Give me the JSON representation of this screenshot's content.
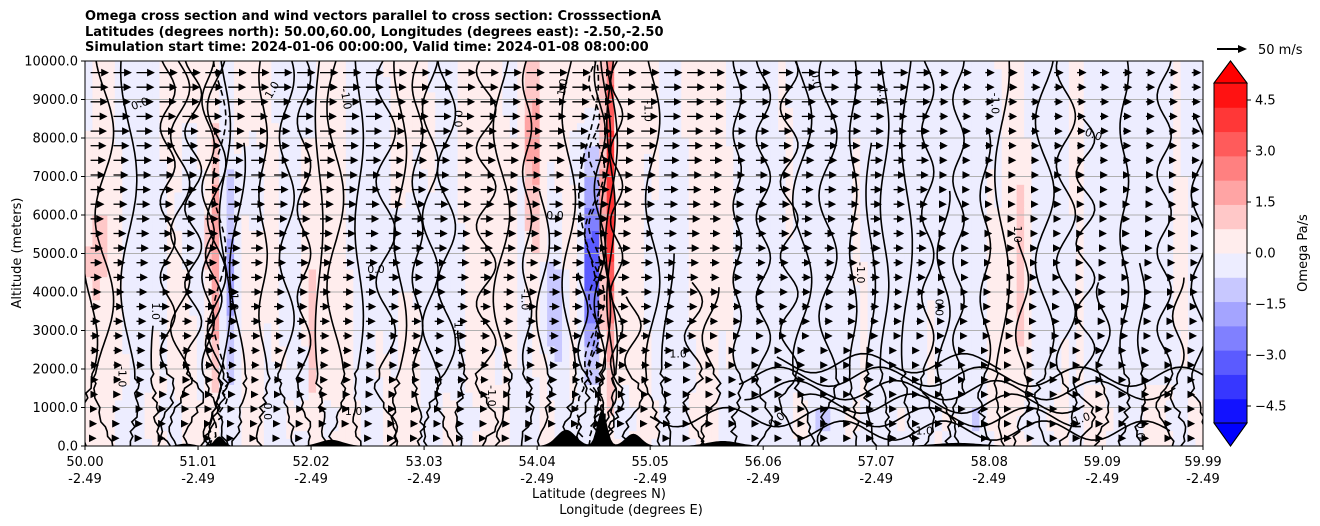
{
  "chart_data": {
    "type": "heatmap",
    "title_lines": [
      "Omega cross section and wind vectors parallel to cross section: CrosssectionA",
      "Latitudes (degrees north): 50.00,60.00, Longitudes (degrees east): -2.50,-2.50",
      "Simulation start time: 2024-01-06 00:00:00, Valid time: 2024-01-08 08:00:00"
    ],
    "ylabel": "Altitude (meters)",
    "xlabel_lines": [
      "Latitude (degrees N)",
      "Longitude (degrees E)"
    ],
    "xlim": [
      50.0,
      59.99
    ],
    "ylim": [
      0,
      10000
    ],
    "y_ticks": [
      "0.0",
      "1000.0",
      "2000.0",
      "3000.0",
      "4000.0",
      "5000.0",
      "6000.0",
      "7000.0",
      "8000.0",
      "9000.0",
      "10000.0"
    ],
    "x_ticks": [
      {
        "lat": "50.00",
        "lon": "-2.49"
      },
      {
        "lat": "51.01",
        "lon": "-2.49"
      },
      {
        "lat": "52.02",
        "lon": "-2.49"
      },
      {
        "lat": "53.03",
        "lon": "-2.49"
      },
      {
        "lat": "54.04",
        "lon": "-2.49"
      },
      {
        "lat": "55.05",
        "lon": "-2.49"
      },
      {
        "lat": "56.06",
        "lon": "-2.49"
      },
      {
        "lat": "57.07",
        "lon": "-2.49"
      },
      {
        "lat": "58.08",
        "lon": "-2.49"
      },
      {
        "lat": "59.09",
        "lon": "-2.49"
      },
      {
        "lat": "59.99",
        "lon": "-2.49"
      }
    ],
    "colorbar": {
      "label": "Omega Pa/s",
      "ticks": [
        "4.5",
        "3.0",
        "1.5",
        "0.0",
        "−1.5",
        "−3.0",
        "−4.5"
      ],
      "range": [
        -5.0,
        5.0
      ],
      "extend": "both",
      "high_color": "#ff0000",
      "low_color": "#0000ff"
    },
    "vector_key": {
      "label": "50 m/s",
      "speed": 50
    },
    "features": {
      "strong_ascent_band_lat": [
        54.6,
        54.75
      ],
      "strong_descent_band_lat": [
        54.4,
        54.55
      ],
      "terrain_peak_lat": 54.6,
      "terrain_peak_altitude": 950
    },
    "contour_labels": [
      "0.0",
      "1.0",
      "-1.0"
    ]
  }
}
